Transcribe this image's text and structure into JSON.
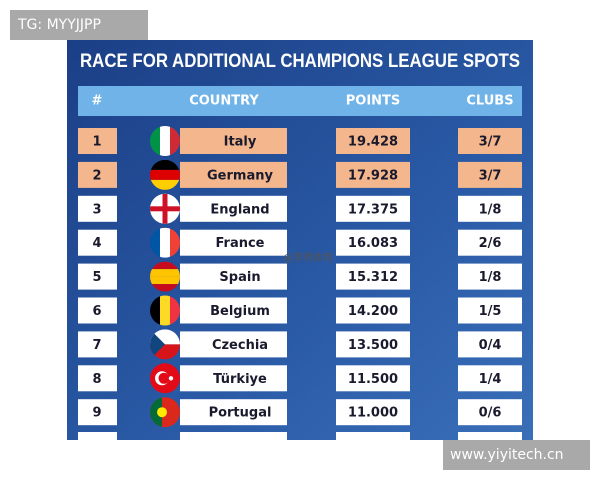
{
  "watermark_top": "TG: MYYJJPP",
  "watermark_center": "@李明体育",
  "watermark_bottom": "www.yiyitech.cn",
  "title": "RACE FOR ADDITIONAL CHAMPIONS LEAGUE SPOTS",
  "table": {
    "header": [
      "#",
      "COUNTRY",
      "POINTS",
      "CLUBS"
    ],
    "rows": [
      [
        "1",
        "Italy",
        "19.428",
        "3/7"
      ],
      [
        "2",
        "Germany",
        "17.928",
        "3/7"
      ],
      [
        "3",
        "England",
        "17.375",
        "1/8"
      ],
      [
        "4",
        "France",
        "16.083",
        "2/6"
      ],
      [
        "5",
        "Spain",
        "15.312",
        "1/8"
      ],
      [
        "6",
        "Belgium",
        "14.200",
        "1/5"
      ],
      [
        "7",
        "Czechia",
        "13.500",
        "0/4"
      ],
      [
        "8",
        "Türkiye",
        "11.500",
        "1/4"
      ],
      [
        "9",
        "Portugal",
        "11.000",
        "0/6"
      ]
    ]
  }
}
